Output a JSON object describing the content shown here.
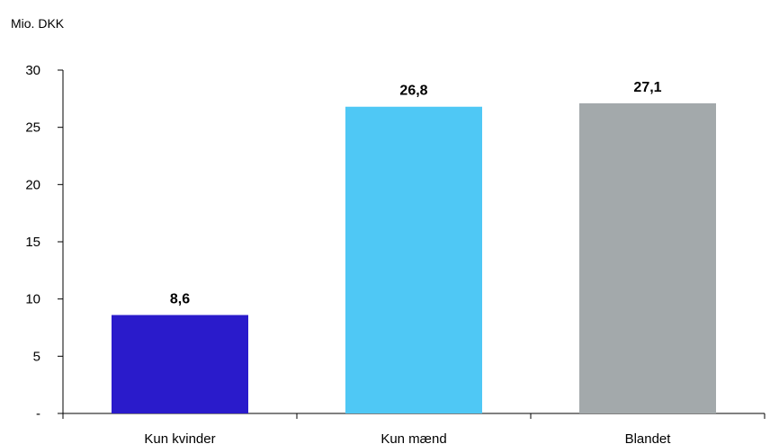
{
  "chart_data": {
    "type": "bar",
    "unit_label": "Mio. DKK",
    "categories": [
      "Kun kvinder",
      "Kun mænd",
      "Blandet"
    ],
    "values": [
      8.6,
      26.8,
      27.1
    ],
    "data_labels": [
      "8,6",
      "26,8",
      "27,1"
    ],
    "colors": [
      "#2a1bcb",
      "#4fc8f5",
      "#a3a9ab"
    ],
    "ylim": [
      0,
      30
    ],
    "yticks": [
      0,
      5,
      10,
      15,
      20,
      25,
      30
    ],
    "ytick_labels": [
      "-",
      "5",
      "10",
      "15",
      "20",
      "25",
      "30"
    ],
    "grid": false,
    "legend": "none"
  }
}
